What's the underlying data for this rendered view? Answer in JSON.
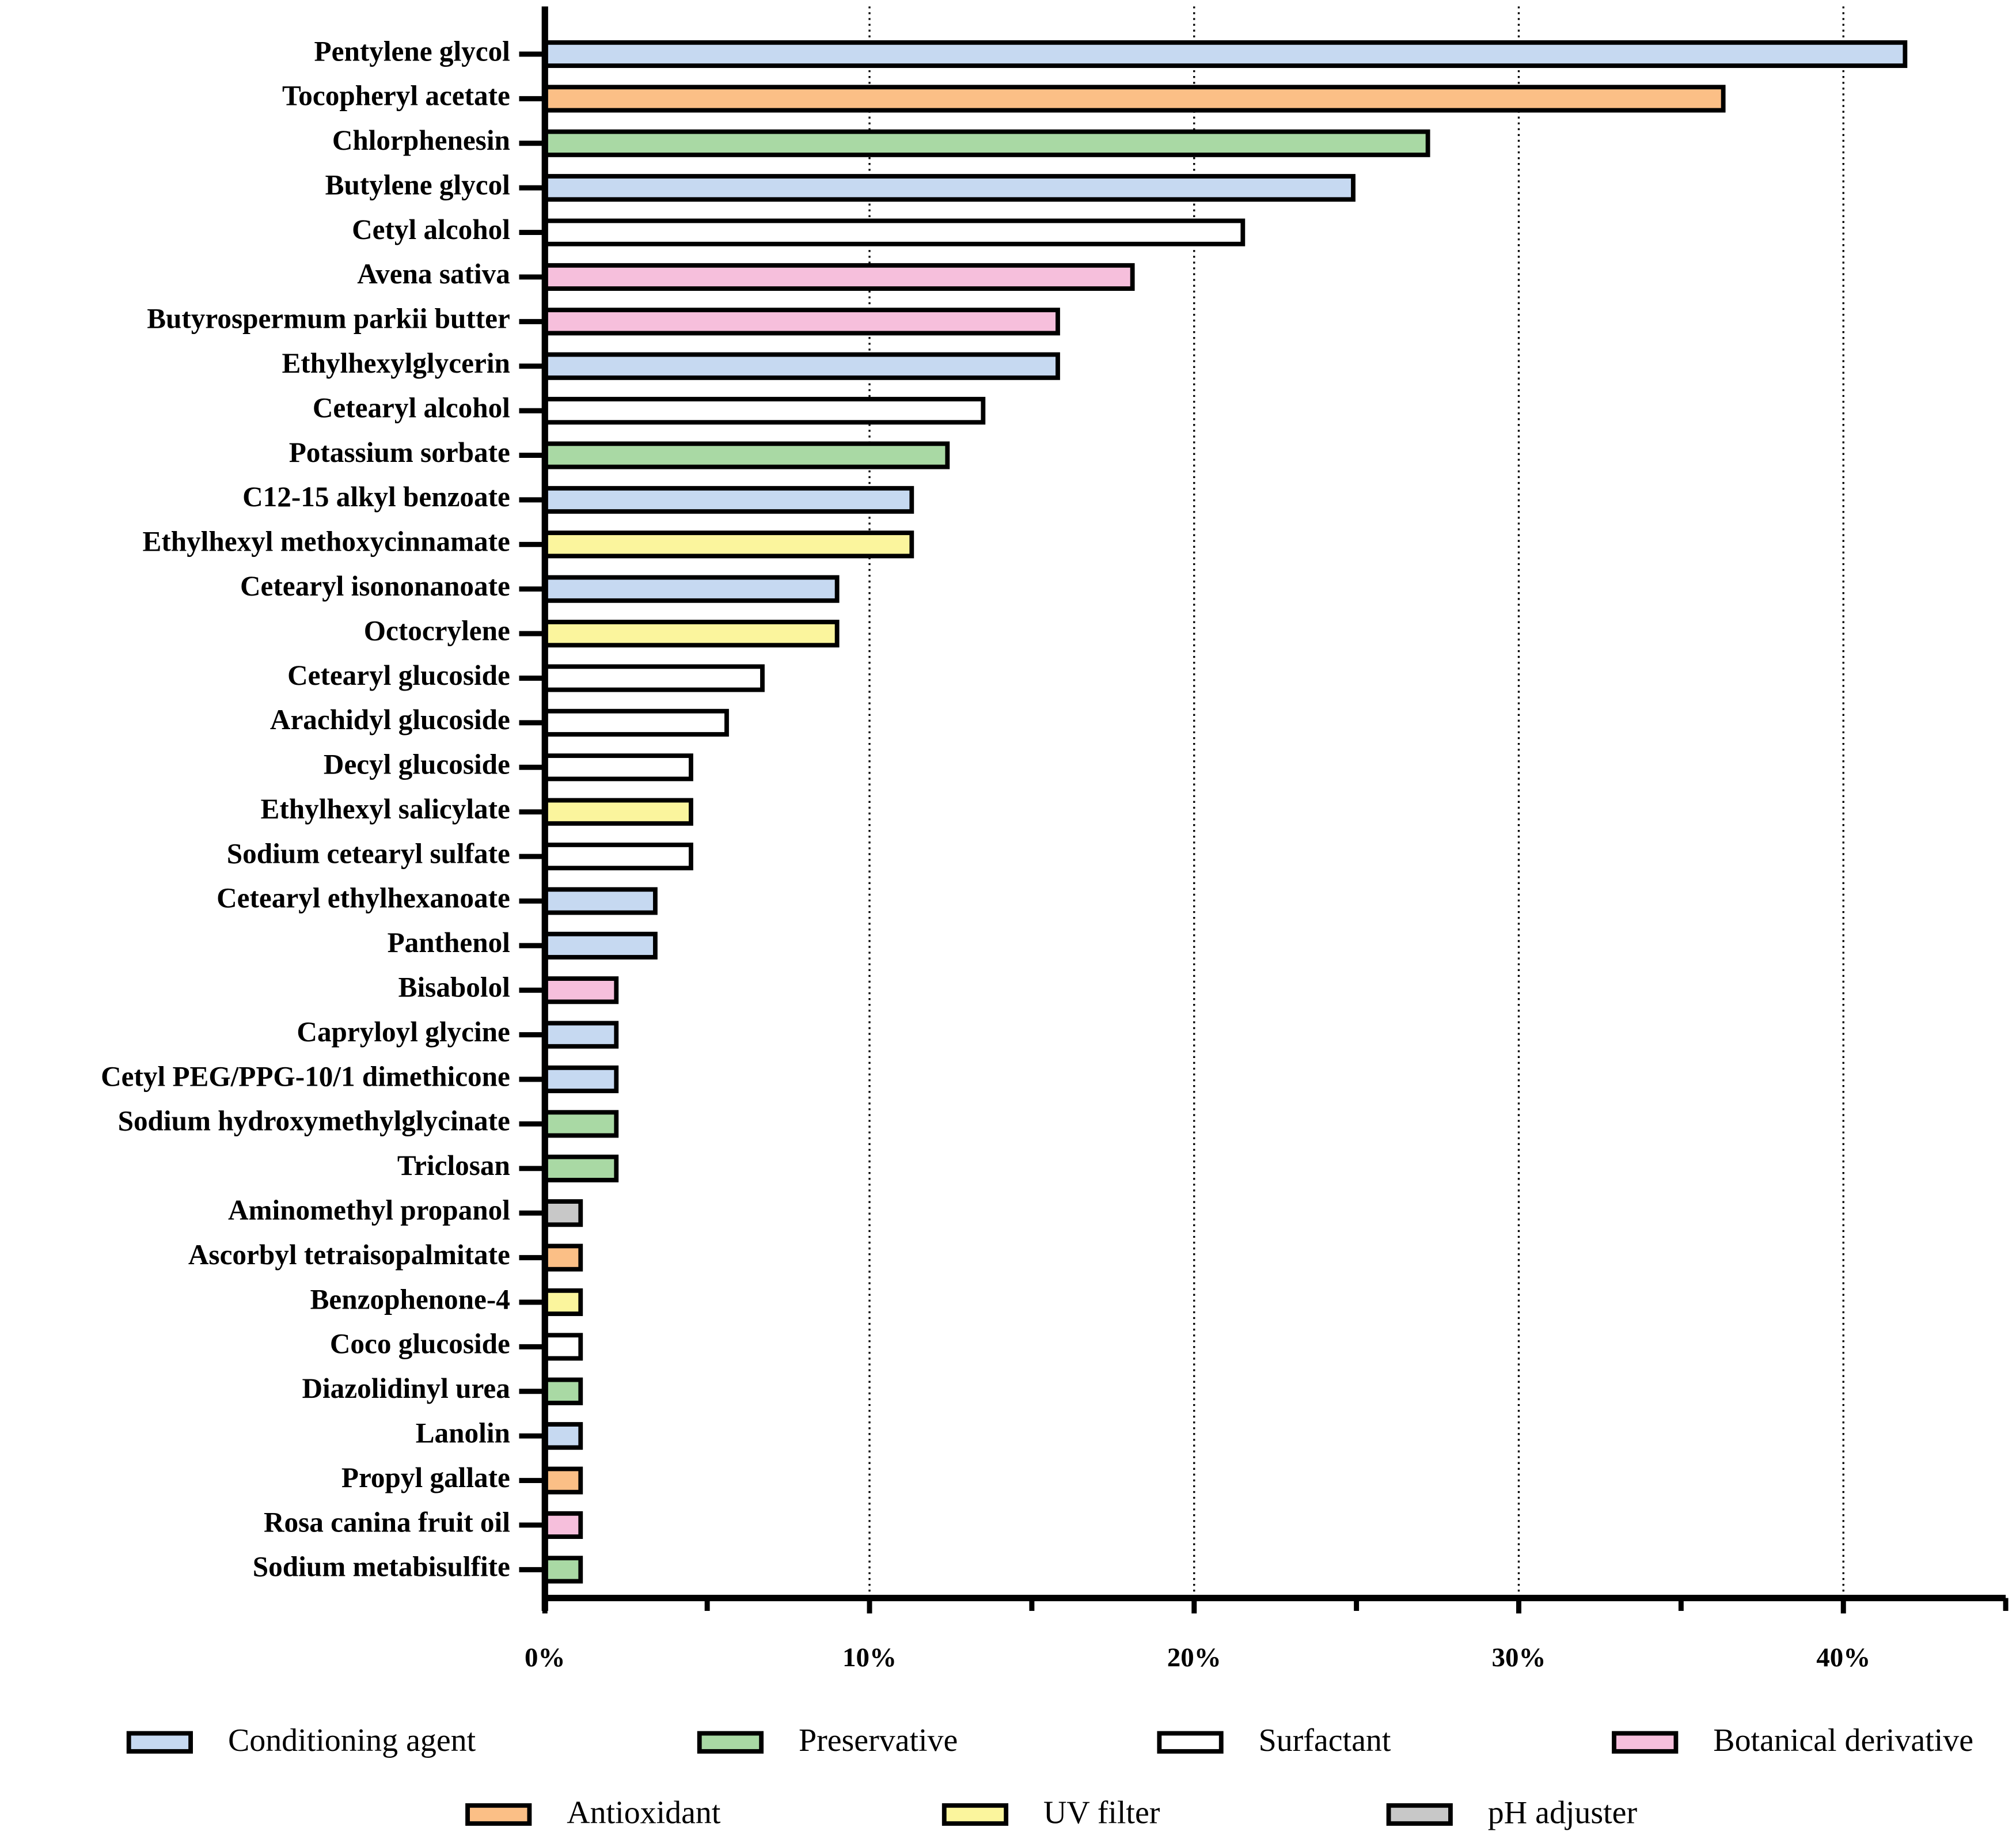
{
  "chart_data": {
    "type": "bar",
    "orientation": "horizontal",
    "categories": [
      "Pentylene glycol",
      "Tocopheryl acetate",
      "Chlorphenesin",
      "Butylene glycol",
      "Cetyl alcohol",
      "Avena sativa",
      "Butyrospermum parkii butter",
      "Ethylhexylglycerin",
      "Cetearyl alcohol",
      "Potassium sorbate",
      "C12-15 alkyl benzoate",
      "Ethylhexyl methoxycinnamate",
      "Cetearyl isononanoate",
      "Octocrylene",
      "Cetearyl glucoside",
      "Arachidyl glucoside",
      "Decyl glucoside",
      "Ethylhexyl salicylate",
      "Sodium cetearyl sulfate",
      "Cetearyl ethylhexanoate",
      "Panthenol",
      "Bisabolol",
      "Capryloyl glycine",
      "Cetyl PEG/PPG-10/1 dimethicone",
      "Sodium hydroxymethylglycinate",
      "Triclosan",
      "Aminomethyl propanol",
      "Ascorbyl tetraisopalmitate",
      "Benzophenone-4",
      "Coco glucoside",
      "Diazolidinyl urea",
      "Lanolin",
      "Propyl gallate",
      "Rosa canina fruit oil",
      "Sodium metabisulfite"
    ],
    "series": [
      {
        "name": "Conditioning agent",
        "color": "#c6d9f1",
        "values": [
          41.9,
          null,
          null,
          24.9,
          null,
          null,
          null,
          15.8,
          null,
          null,
          11.3,
          null,
          9.0,
          null,
          null,
          null,
          null,
          null,
          null,
          3.4,
          3.4,
          null,
          2.2,
          2.2,
          null,
          null,
          null,
          null,
          null,
          null,
          null,
          1.1,
          null,
          null,
          null
        ]
      },
      {
        "name": "Preservative",
        "color": "#a9d9a4",
        "values": [
          null,
          null,
          27.2,
          null,
          null,
          null,
          null,
          null,
          null,
          12.4,
          null,
          null,
          null,
          null,
          null,
          null,
          null,
          null,
          null,
          null,
          null,
          null,
          null,
          null,
          2.2,
          2.2,
          null,
          null,
          null,
          null,
          1.1,
          null,
          null,
          null,
          1.1
        ]
      },
      {
        "name": "Surfactant",
        "color": "#ffffff",
        "values": [
          null,
          null,
          null,
          null,
          21.5,
          null,
          null,
          null,
          13.5,
          null,
          null,
          null,
          null,
          null,
          6.7,
          5.6,
          4.5,
          null,
          4.5,
          null,
          null,
          null,
          null,
          null,
          null,
          null,
          null,
          null,
          null,
          1.1,
          null,
          null,
          null,
          null,
          null
        ]
      },
      {
        "name": "Botanical derivative",
        "color": "#f6bfdc",
        "values": [
          null,
          null,
          null,
          null,
          null,
          18.1,
          15.8,
          null,
          null,
          null,
          null,
          null,
          null,
          null,
          null,
          null,
          null,
          null,
          null,
          null,
          null,
          2.2,
          null,
          null,
          null,
          null,
          null,
          null,
          null,
          null,
          null,
          null,
          null,
          1.1,
          null
        ]
      },
      {
        "name": "Antioxidant",
        "color": "#fbbf86",
        "values": [
          null,
          36.3,
          null,
          null,
          null,
          null,
          null,
          null,
          null,
          null,
          null,
          null,
          null,
          null,
          null,
          null,
          null,
          null,
          null,
          null,
          null,
          null,
          null,
          null,
          null,
          null,
          null,
          1.1,
          null,
          null,
          null,
          null,
          1.1,
          null,
          null
        ]
      },
      {
        "name": "UV filter",
        "color": "#fbf59d",
        "values": [
          null,
          null,
          null,
          null,
          null,
          null,
          null,
          null,
          null,
          null,
          null,
          11.3,
          null,
          9.0,
          null,
          null,
          null,
          4.5,
          null,
          null,
          null,
          null,
          null,
          null,
          null,
          null,
          null,
          null,
          1.1,
          null,
          null,
          null,
          null,
          null,
          null
        ]
      },
      {
        "name": "pH adjuster",
        "color": "#c8c8c8",
        "values": [
          null,
          null,
          null,
          null,
          null,
          null,
          null,
          null,
          null,
          null,
          null,
          null,
          null,
          null,
          null,
          null,
          null,
          null,
          null,
          null,
          null,
          null,
          null,
          null,
          null,
          null,
          1.1,
          null,
          null,
          null,
          null,
          null,
          null,
          null,
          null
        ]
      }
    ],
    "xlim": [
      0,
      45
    ],
    "xticks": [
      {
        "value": 0,
        "label": "0%"
      },
      {
        "value": 10,
        "label": "10%"
      },
      {
        "value": 20,
        "label": "20%"
      },
      {
        "value": 30,
        "label": "30%"
      },
      {
        "value": 40,
        "label": "40%"
      }
    ],
    "minor_xticks": [
      5,
      15,
      25,
      35,
      45
    ],
    "grid": true
  }
}
